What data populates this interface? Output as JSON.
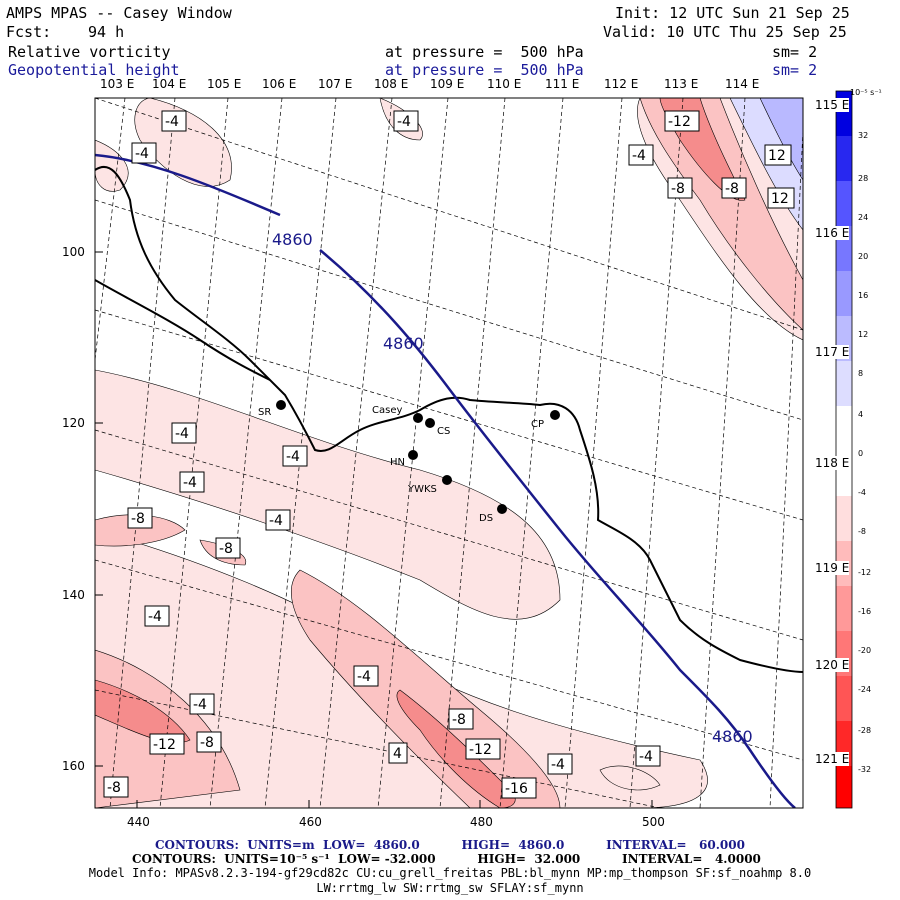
{
  "header": {
    "title": "AMPS MPAS -- Casey Window",
    "init": "Init: 12 UTC Sun 21 Sep 25",
    "fcst_label": "Fcst:",
    "fcst_value": "94 h",
    "valid": "Valid: 10 UTC Thu 25 Sep 25",
    "field1_name": "Relative vorticity",
    "field1_level": "at pressure =  500 hPa",
    "field1_sm": "sm= 2",
    "field2_name": "Geopotential height",
    "field2_level": "at pressure =  500 hPa",
    "field2_sm": "sm= 2"
  },
  "longitude_labels_top": [
    "103 E",
    "104 E",
    "105 E",
    "106 E",
    "107 E",
    "108 E",
    "109 E",
    "110 E",
    "111 E",
    "112 E",
    "113 E",
    "114 E"
  ],
  "longitude_labels_right": [
    "115 E",
    "116 E",
    "117 E",
    "118 E",
    "119 E",
    "120 E",
    "121 E"
  ],
  "axis_y_ticks": [
    "100",
    "120",
    "140",
    "160"
  ],
  "axis_x_ticks": [
    "440",
    "460",
    "480",
    "500"
  ],
  "stations": [
    {
      "name": "SR"
    },
    {
      "name": "Casey"
    },
    {
      "name": "CS"
    },
    {
      "name": "CP"
    },
    {
      "name": "HN"
    },
    {
      "name": "YWKS"
    },
    {
      "name": "DS"
    }
  ],
  "height_contour_label": "4860",
  "vorticity_labels": [
    "-4",
    "-4",
    "-4",
    "-12",
    "-4",
    "-8",
    "-8",
    "12",
    "12",
    "-4",
    "-4",
    "-4",
    "-8",
    "-4",
    "-8",
    "-4",
    "-4",
    "-4",
    "-12",
    "-8",
    "-8",
    "4",
    "-8",
    "-12",
    "-16",
    "-4",
    "-4",
    "-8"
  ],
  "colorbar": {
    "unit": "10⁻⁵ s⁻¹",
    "ticks": [
      "32",
      "28",
      "24",
      "20",
      "16",
      "12",
      "8",
      "4",
      "0",
      "-4",
      "-8",
      "-12",
      "-16",
      "-20",
      "-24",
      "-28",
      "-32"
    ],
    "colors": [
      "#0000e0",
      "#2828f0",
      "#5555ff",
      "#7777ff",
      "#9999ff",
      "#bbbbff",
      "#ddddff",
      "#ffffff",
      "#ffffff",
      "#ffdede",
      "#ffbbbb",
      "#ff9999",
      "#ff7777",
      "#ff5555",
      "#ff2828",
      "#ff0000"
    ]
  },
  "footer": {
    "contours1": "CONTOURS:  UNITS=m  LOW=  4860.0          HIGH=  4860.0          INTERVAL=   60.000",
    "contours2": "CONTOURS:  UNITS=10⁻⁵ s⁻¹  LOW= -32.000          HIGH=  32.000          INTERVAL=   4.0000",
    "model_info": "Model Info: MPASv8.2.3-194-gf29cd82c CU:cu_grell_freitas PBL:bl_mynn MP:mp_thompson SF:sf_noahmp 8.0",
    "model_info2": "LW:rrtmg_lw SW:rrtmg_sw SFLAY:sf_mynn"
  }
}
